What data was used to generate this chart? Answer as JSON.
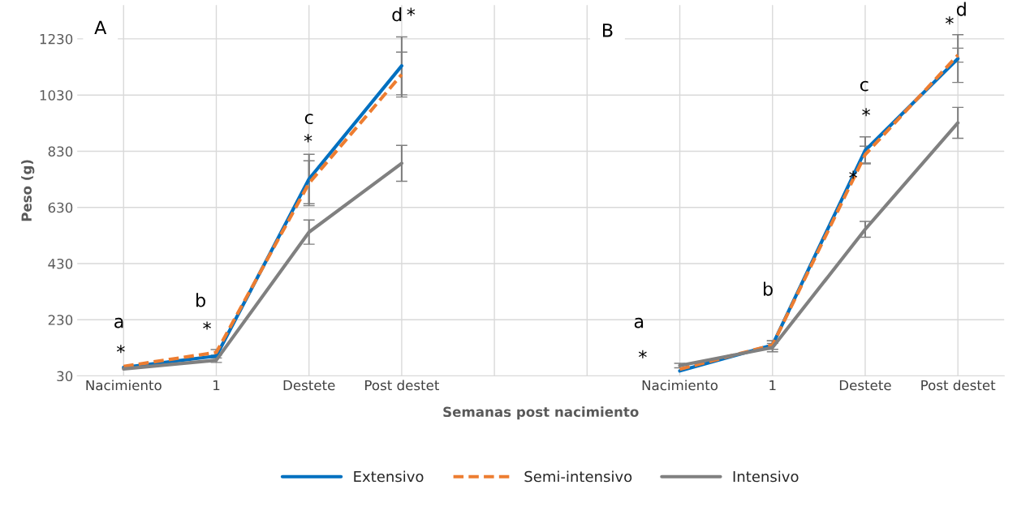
{
  "chart_data": {
    "type": "line",
    "categories": [
      "Nacimiento",
      "1",
      "Destete",
      "Post destet",
      null,
      null,
      "Nacimiento",
      "1",
      "Destete",
      "Post destet"
    ],
    "xlabel": "Semanas post nacimiento",
    "ylabel": "Peso (g)",
    "ylim": [
      30,
      1350
    ],
    "yticks": [
      30,
      230,
      430,
      630,
      830,
      1030,
      1230
    ],
    "grid": true,
    "legend": "bottom",
    "series": [
      {
        "name": "Extensivo",
        "color": "#0070c0",
        "line_style": "solid",
        "values": [
          60,
          101,
          731,
          1134,
          null,
          null,
          48,
          140,
          833,
          1160
        ],
        "errors": [
          null,
          null,
          88,
          103,
          null,
          null,
          null,
          15,
          48,
          85
        ]
      },
      {
        "name": "Semi-intensivo",
        "color": "#ed7d31",
        "line_style": "dashed",
        "values": [
          64,
          114,
          716,
          1103,
          null,
          null,
          54,
          140,
          818,
          1172
        ],
        "errors": [
          null,
          10,
          80,
          80,
          null,
          null,
          null,
          15,
          30,
          25
        ]
      },
      {
        "name": "Intensivo",
        "color": "#808080",
        "line_style": "solid",
        "values": [
          55,
          86,
          542,
          787,
          null,
          null,
          67,
          131,
          552,
          931
        ],
        "errors": [
          null,
          8,
          43,
          64,
          null,
          null,
          8,
          15,
          28,
          55
        ]
      }
    ],
    "annotations": [
      "A",
      "a",
      "*",
      "b",
      "*",
      "c",
      "*",
      "d",
      "*",
      "B",
      "a",
      "*",
      "b",
      "c",
      "*",
      "*",
      "d",
      "*"
    ]
  }
}
